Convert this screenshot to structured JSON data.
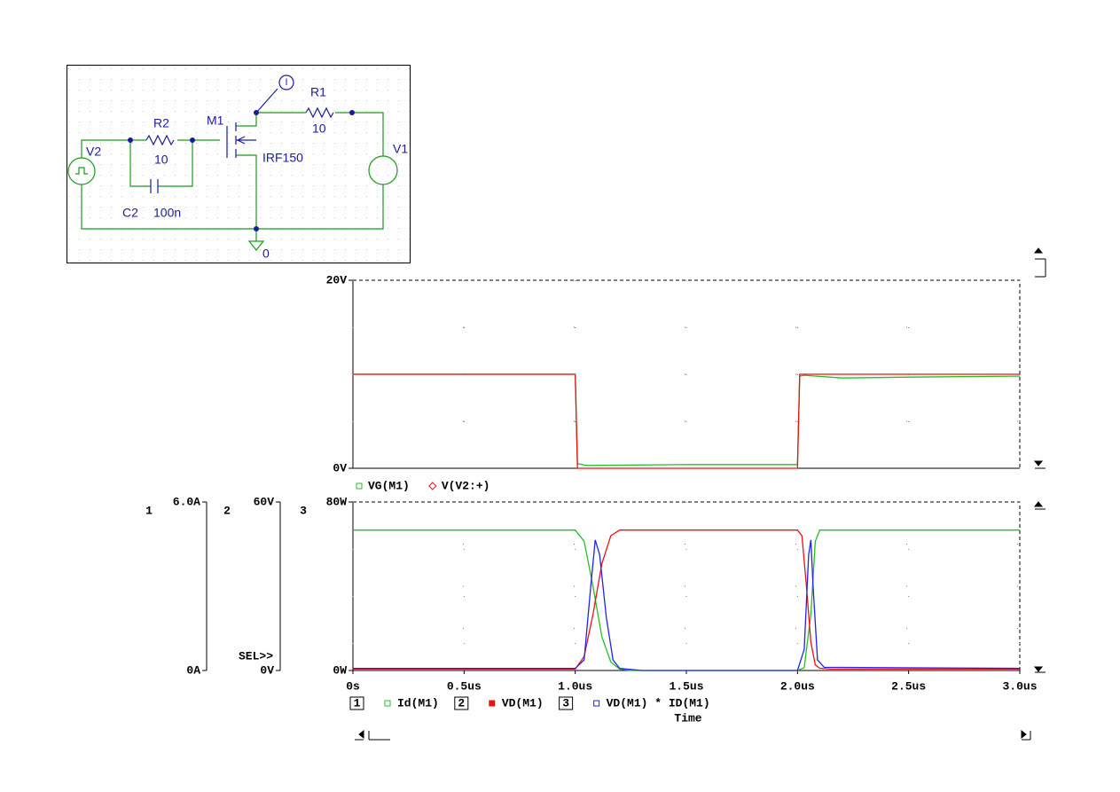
{
  "schematic": {
    "labels": {
      "v2": "V2",
      "r2": "R2",
      "r2_value": "10",
      "m1": "M1",
      "r1": "R1",
      "r1_value": "10",
      "m1_model": "IRF150",
      "v1": "V1",
      "c2": "C2",
      "c2_value": "100n",
      "ground": "0",
      "probe": "I"
    }
  },
  "chart_data": [
    {
      "type": "line",
      "xlim": [
        0,
        3.0
      ],
      "xgrid": [
        0.5,
        1.0,
        1.5,
        2.0,
        2.5
      ],
      "ylim": [
        0,
        20
      ],
      "yticks": [
        {
          "value": 20,
          "label": "20V"
        },
        {
          "value": 0,
          "label": "0V"
        }
      ],
      "ygrid": [
        5,
        10,
        15
      ],
      "series": [
        {
          "name": "VG(M1)",
          "color": "#22c022",
          "marker": "square",
          "x": [
            0,
            1.0,
            1.01,
            1.05,
            1.5,
            2.0,
            2.01,
            2.03,
            2.2,
            2.5,
            3.0
          ],
          "values": [
            10,
            10,
            0.5,
            0.3,
            0.4,
            0.4,
            9.8,
            9.9,
            9.6,
            9.7,
            9.8
          ]
        },
        {
          "name": "V(V2:+)",
          "color": "#ee1111",
          "marker": "diamond",
          "x": [
            0,
            1.0,
            1.01,
            2.0,
            2.01,
            3.0
          ],
          "values": [
            10,
            10,
            0,
            0,
            10,
            10
          ]
        }
      ]
    },
    {
      "type": "line",
      "xlabel": "Time",
      "xlim": [
        0,
        3.0
      ],
      "xticks": [
        {
          "value": 0,
          "label": "0s"
        },
        {
          "value": 0.5,
          "label": "0.5us"
        },
        {
          "value": 1.0,
          "label": "1.0us"
        },
        {
          "value": 1.5,
          "label": "1.5us"
        },
        {
          "value": 2.0,
          "label": "2.0us"
        },
        {
          "value": 2.5,
          "label": "2.5us"
        },
        {
          "value": 3.0,
          "label": "3.0us"
        }
      ],
      "sel_label": "SEL>>",
      "y_axes": [
        {
          "label": "1",
          "lim": [
            0,
            6
          ],
          "ticks": [
            {
              "value": 6,
              "label": "6.0A"
            },
            {
              "value": 0,
              "label": "0A"
            }
          ]
        },
        {
          "label": "2",
          "lim": [
            0,
            60
          ],
          "ticks": [
            {
              "value": 60,
              "label": "60V"
            },
            {
              "value": 0,
              "label": "0V"
            }
          ]
        },
        {
          "label": "3",
          "lim": [
            0,
            80
          ],
          "ticks": [
            {
              "value": 80,
              "label": "80W"
            },
            {
              "value": 0,
              "label": "0W"
            }
          ],
          "grid": [
            20,
            40,
            60
          ]
        }
      ],
      "series": [
        {
          "name": "Id(M1)",
          "color": "#22c022",
          "marker": "square",
          "axis": 0,
          "x": [
            0,
            1.0,
            1.04,
            1.08,
            1.12,
            1.16,
            1.2,
            1.25,
            2.0,
            2.03,
            2.06,
            2.08,
            2.1,
            3.0
          ],
          "values": [
            5,
            5,
            4.6,
            3,
            1.2,
            0.3,
            0.05,
            0,
            0,
            0.1,
            2,
            4.6,
            5,
            5
          ]
        },
        {
          "name": "VD(M1)",
          "color": "#ee1111",
          "marker": "filled-square",
          "axis": 1,
          "x": [
            0,
            1.0,
            1.04,
            1.08,
            1.12,
            1.16,
            1.2,
            1.5,
            2.0,
            2.02,
            2.04,
            2.06,
            2.08,
            2.1,
            2.15,
            3.0
          ],
          "values": [
            0.5,
            0.5,
            5,
            20,
            38,
            48,
            50,
            50,
            50,
            48,
            30,
            10,
            2,
            0.8,
            0.5,
            0.5
          ]
        },
        {
          "name": "VD(M1) * ID(M1)",
          "color": "#2222ee",
          "marker": "square",
          "axis": 2,
          "x": [
            0,
            1.0,
            1.04,
            1.07,
            1.09,
            1.11,
            1.14,
            1.17,
            1.2,
            1.3,
            2.0,
            2.03,
            2.05,
            2.06,
            2.07,
            2.09,
            2.12,
            3.0
          ],
          "values": [
            1,
            1,
            5,
            40,
            62,
            55,
            25,
            5,
            1,
            0,
            0,
            10,
            55,
            62,
            40,
            5,
            1.5,
            1
          ]
        }
      ]
    }
  ]
}
